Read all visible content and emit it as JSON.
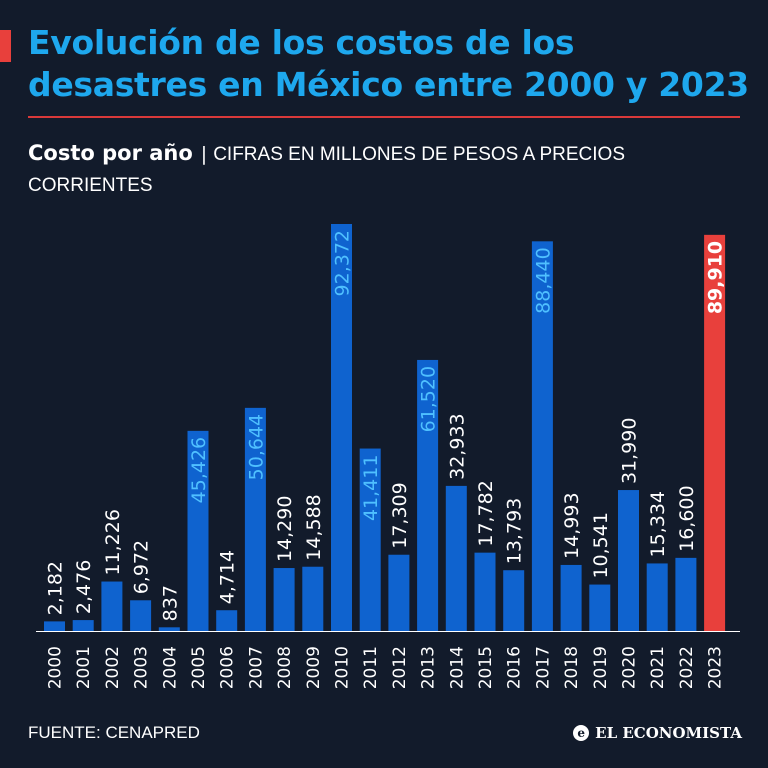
{
  "header": {
    "title": "Evolución de los costos de los desastres en México entre 2000 y 2023"
  },
  "subtitle": {
    "bold": "Costo por año",
    "separator": "|",
    "light": "CIFRAS EN MILLONES DE PESOS A PRECIOS CORRIENTES"
  },
  "footer": {
    "source": "FUENTE: CENAPRED",
    "logo_text": "EL ECONOMISTA",
    "logo_icon": "e"
  },
  "colors": {
    "background": "#121b2b",
    "bar": "#0f63cf",
    "highlight": "#e8403c",
    "title": "#1ea8ee",
    "label_inside": "#4fc0ff"
  },
  "chart_data": {
    "type": "bar",
    "categories": [
      "2000",
      "2001",
      "2002",
      "2003",
      "2004",
      "2005",
      "2006",
      "2007",
      "2008",
      "2009",
      "2010",
      "2011",
      "2012",
      "2013",
      "2014",
      "2015",
      "2016",
      "2017",
      "2018",
      "2019",
      "2020",
      "2021",
      "2022",
      "2023"
    ],
    "values": [
      2182,
      2476,
      11226,
      6972,
      837,
      45426,
      4714,
      50644,
      14290,
      14588,
      92372,
      41411,
      17309,
      61520,
      32933,
      17782,
      13793,
      88440,
      14993,
      10541,
      31990,
      15334,
      16600,
      89910
    ],
    "value_labels": [
      "2,182",
      "2,476",
      "11,226",
      "6,972",
      "837",
      "45,426",
      "4,714",
      "50,644",
      "14,290",
      "14,588",
      "92,372",
      "41,411",
      "17,309",
      "61,520",
      "32,933",
      "17,782",
      "13,793",
      "88,440",
      "14,993",
      "10,541",
      "31,990",
      "15,334",
      "16,600",
      "89,910"
    ],
    "label_inside": [
      false,
      false,
      false,
      false,
      false,
      true,
      false,
      true,
      false,
      false,
      true,
      true,
      false,
      true,
      false,
      false,
      false,
      true,
      false,
      false,
      false,
      false,
      false,
      true
    ],
    "highlight_index": 23,
    "ylim": [
      0,
      92372
    ],
    "grid": false,
    "legend": "none"
  }
}
